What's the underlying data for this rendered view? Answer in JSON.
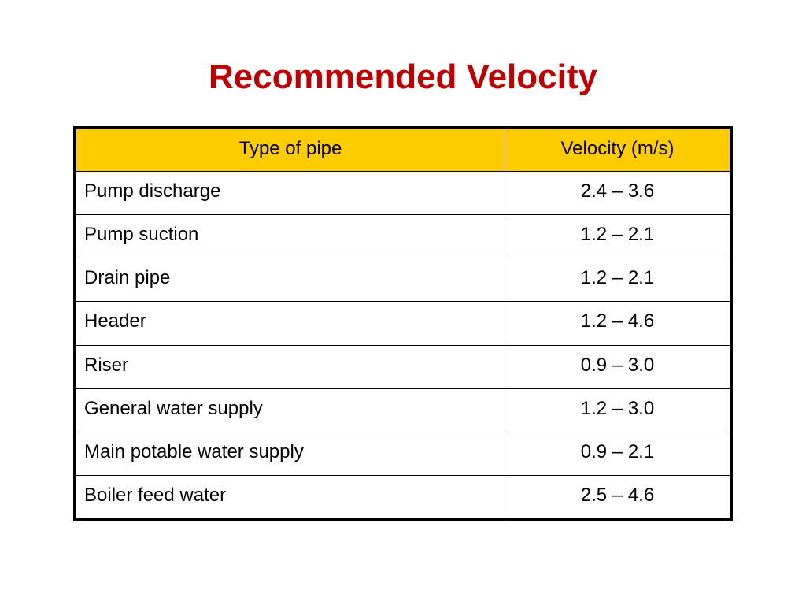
{
  "title": "Recommended Velocity",
  "colors": {
    "title": "#c00000",
    "header_fill": "#ffcc00",
    "border": "#000000",
    "text": "#000000"
  },
  "table": {
    "headers": [
      "Type of pipe",
      "Velocity (m/s)"
    ],
    "rows": [
      [
        "Pump discharge",
        "2.4 – 3.6"
      ],
      [
        "Pump suction",
        "1.2 – 2.1"
      ],
      [
        "Drain pipe",
        "1.2 – 2.1"
      ],
      [
        "Header",
        "1.2 – 4.6"
      ],
      [
        "Riser",
        "0.9 – 3.0"
      ],
      [
        "General water supply",
        "1.2 – 3.0"
      ],
      [
        "Main potable water supply",
        "0.9 – 2.1"
      ],
      [
        "Boiler feed water",
        "2.5 – 4.6"
      ]
    ]
  }
}
